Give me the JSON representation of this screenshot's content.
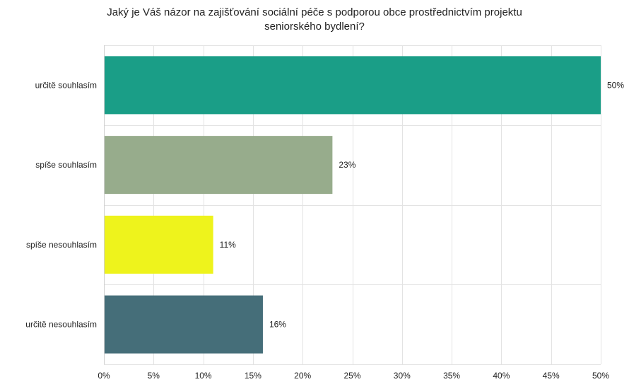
{
  "chart_data": {
    "type": "bar",
    "orientation": "horizontal",
    "title_lines": [
      "Jaký je Váš názor na zajišťování sociální péče s podporou obce prostřednictvím projektu",
      "seniorského bydlení?"
    ],
    "categories": [
      "určitě souhlasím",
      "spíše souhlasím",
      "spíše nesouhlasím",
      "určitě nesouhlasím"
    ],
    "values": [
      50,
      23,
      11,
      16
    ],
    "value_labels": [
      "50%",
      "23%",
      "11%",
      "16%"
    ],
    "colors": [
      "#1a9e87",
      "#97ac8c",
      "#eef31c",
      "#456e79"
    ],
    "xlim": [
      0,
      50
    ],
    "x_ticks": [
      0,
      5,
      10,
      15,
      20,
      25,
      30,
      35,
      40,
      45,
      50
    ],
    "x_tick_labels": [
      "0%",
      "5%",
      "10%",
      "15%",
      "20%",
      "25%",
      "30%",
      "35%",
      "40%",
      "45%",
      "50%"
    ],
    "grid": true,
    "legend": "none"
  }
}
